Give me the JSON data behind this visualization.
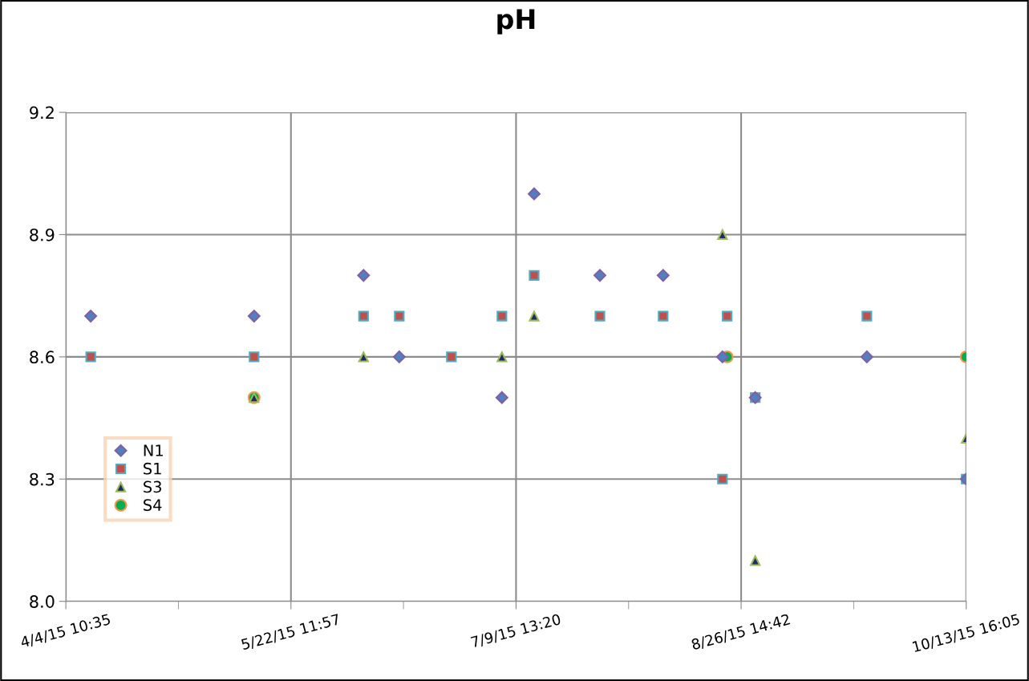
{
  "chart_data": {
    "type": "scatter",
    "title": "pH",
    "x": [
      "2015-04-09T18:00",
      "2015-05-14T15:00",
      "2015-06-07T00:00",
      "2015-06-14T15:00",
      "2015-06-25T18:00",
      "2015-07-06T13:00",
      "2015-07-13T10:00",
      "2015-07-27T11:00",
      "2015-08-09T23:00",
      "2015-08-22T15:00",
      "2015-08-23T15:00",
      "2015-08-29T15:00",
      "2015-09-22T11:00",
      "2015-10-13T16:05"
    ],
    "series": [
      {
        "name": "N1",
        "color": "#4f81bd",
        "marker": "diamond",
        "values": [
          8.7,
          8.7,
          8.8,
          8.6,
          null,
          8.5,
          9.0,
          8.8,
          8.8,
          8.6,
          null,
          8.5,
          8.6,
          8.3
        ]
      },
      {
        "name": "S1",
        "color": "#c0504d",
        "marker": "square",
        "values": [
          8.6,
          8.6,
          8.7,
          8.7,
          8.6,
          8.7,
          8.8,
          8.7,
          8.7,
          8.3,
          8.7,
          8.5,
          8.7,
          8.3
        ]
      },
      {
        "name": "S3",
        "color": "#1f2a6b",
        "marker": "triangle",
        "values": [
          null,
          8.5,
          8.6,
          null,
          null,
          8.6,
          8.7,
          null,
          null,
          8.9,
          null,
          8.1,
          null,
          8.4
        ]
      },
      {
        "name": "S4",
        "color": "#00b050",
        "marker": "circle",
        "values": [
          null,
          8.5,
          null,
          null,
          null,
          null,
          null,
          null,
          null,
          null,
          8.6,
          null,
          null,
          8.6
        ]
      }
    ],
    "xlim": [
      "2015-04-04T10:35",
      "2015-10-13T16:05"
    ],
    "xticks": [
      {
        "value": "2015-04-04T10:35",
        "label": "4/4/15 10:35"
      },
      {
        "value": "2015-04-28T11:16",
        "label": null
      },
      {
        "value": "2015-05-22T11:57",
        "label": "5/22/15 11:57"
      },
      {
        "value": "2015-06-15T12:38",
        "label": null
      },
      {
        "value": "2015-07-09T13:20",
        "label": "7/9/15 13:20"
      },
      {
        "value": "2015-08-02T14:01",
        "label": null
      },
      {
        "value": "2015-08-26T14:42",
        "label": "8/26/15 14:42"
      },
      {
        "value": "2015-09-19T15:23",
        "label": null
      },
      {
        "value": "2015-10-13T16:05",
        "label": "10/13/15 16:05"
      }
    ],
    "ylim": [
      8.0,
      9.2
    ],
    "yticks": [
      {
        "value": 8.0,
        "label": "8.0"
      },
      8.3,
      8.6,
      8.9,
      9.2
    ],
    "grid": true,
    "legend": "left"
  }
}
